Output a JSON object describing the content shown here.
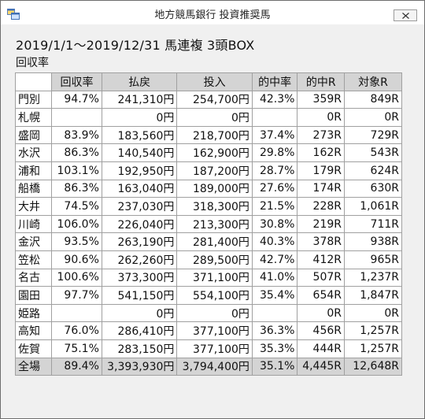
{
  "window": {
    "title": "地方競馬銀行 投資推奨馬"
  },
  "heading": "2019/1/1～2019/12/31 馬連複 3頭BOX",
  "subheading": "回収率",
  "table": {
    "columns": [
      "",
      "回収率",
      "払戻",
      "投入",
      "的中率",
      "的中R",
      "対象R"
    ],
    "rows": [
      [
        "門別",
        "94.7%",
        "241,310円",
        "254,700円",
        "42.3%",
        "359R",
        "849R"
      ],
      [
        "札幌",
        "",
        "0円",
        "0円",
        "",
        "0R",
        "0R"
      ],
      [
        "盛岡",
        "83.9%",
        "183,560円",
        "218,700円",
        "37.4%",
        "273R",
        "729R"
      ],
      [
        "水沢",
        "86.3%",
        "140,540円",
        "162,900円",
        "29.8%",
        "162R",
        "543R"
      ],
      [
        "浦和",
        "103.1%",
        "192,950円",
        "187,200円",
        "28.7%",
        "179R",
        "624R"
      ],
      [
        "船橋",
        "86.3%",
        "163,040円",
        "189,000円",
        "27.6%",
        "174R",
        "630R"
      ],
      [
        "大井",
        "74.5%",
        "237,030円",
        "318,300円",
        "21.5%",
        "228R",
        "1,061R"
      ],
      [
        "川崎",
        "106.0%",
        "226,040円",
        "213,300円",
        "30.8%",
        "219R",
        "711R"
      ],
      [
        "金沢",
        "93.5%",
        "263,190円",
        "281,400円",
        "40.3%",
        "378R",
        "938R"
      ],
      [
        "笠松",
        "90.6%",
        "262,260円",
        "289,500円",
        "42.7%",
        "412R",
        "965R"
      ],
      [
        "名古",
        "100.6%",
        "373,300円",
        "371,100円",
        "41.0%",
        "507R",
        "1,237R"
      ],
      [
        "園田",
        "97.7%",
        "541,150円",
        "554,100円",
        "35.4%",
        "654R",
        "1,847R"
      ],
      [
        "姫路",
        "",
        "0円",
        "0円",
        "",
        "0R",
        "0R"
      ],
      [
        "高知",
        "76.0%",
        "286,410円",
        "377,100円",
        "36.3%",
        "456R",
        "1,257R"
      ],
      [
        "佐賀",
        "75.1%",
        "283,150円",
        "377,100円",
        "35.3%",
        "444R",
        "1,257R"
      ]
    ],
    "total": [
      "全場",
      "89.4%",
      "3,393,930円",
      "3,794,400円",
      "35.1%",
      "4,445R",
      "12,648R"
    ]
  },
  "icons": {
    "app": "app-window-icon",
    "close": "close-icon"
  }
}
